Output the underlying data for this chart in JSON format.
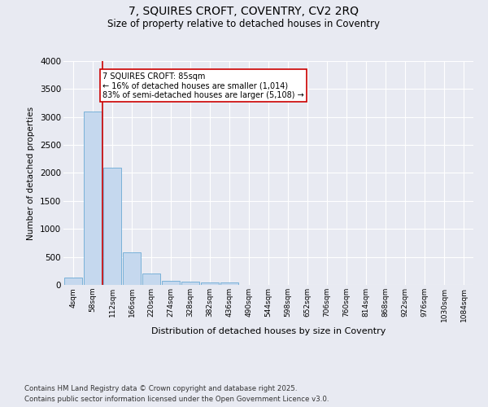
{
  "title": "7, SQUIRES CROFT, COVENTRY, CV2 2RQ",
  "subtitle": "Size of property relative to detached houses in Coventry",
  "xlabel": "Distribution of detached houses by size in Coventry",
  "ylabel": "Number of detached properties",
  "footnote1": "Contains HM Land Registry data © Crown copyright and database right 2025.",
  "footnote2": "Contains public sector information licensed under the Open Government Licence v3.0.",
  "bin_labels": [
    "4sqm",
    "58sqm",
    "112sqm",
    "166sqm",
    "220sqm",
    "274sqm",
    "328sqm",
    "382sqm",
    "436sqm",
    "490sqm",
    "544sqm",
    "598sqm",
    "652sqm",
    "706sqm",
    "760sqm",
    "814sqm",
    "868sqm",
    "922sqm",
    "976sqm",
    "1030sqm",
    "1084sqm"
  ],
  "bar_values": [
    130,
    3100,
    2100,
    580,
    200,
    80,
    60,
    40,
    40,
    0,
    0,
    0,
    0,
    0,
    0,
    0,
    0,
    0,
    0,
    0,
    0
  ],
  "bar_color": "#c5d8ee",
  "bar_edge_color": "#6aaad4",
  "background_color": "#e8eaf2",
  "grid_color": "#ffffff",
  "annotation_text": "7 SQUIRES CROFT: 85sqm\n← 16% of detached houses are smaller (1,014)\n83% of semi-detached houses are larger (5,108) →",
  "annotation_box_color": "#ffffff",
  "annotation_box_edge_color": "#cc0000",
  "vline_color": "#cc0000",
  "ylim": [
    0,
    4000
  ],
  "yticks": [
    0,
    500,
    1000,
    1500,
    2000,
    2500,
    3000,
    3500,
    4000
  ],
  "vline_x": 1.5
}
